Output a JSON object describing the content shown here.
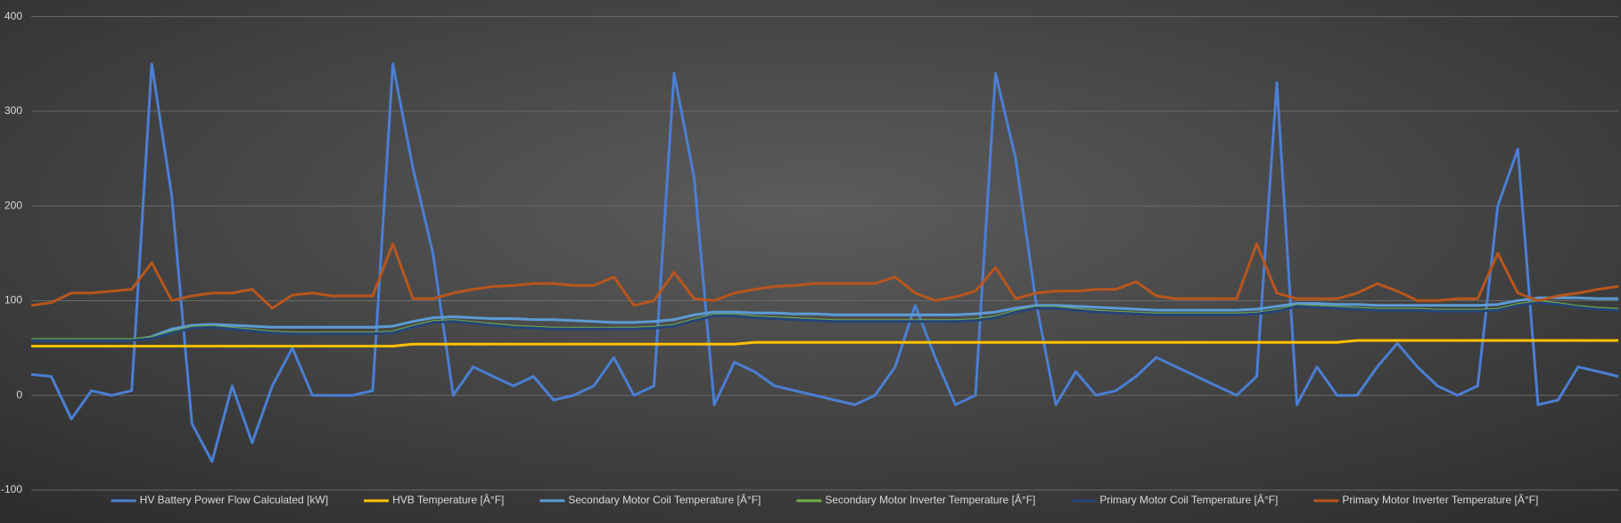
{
  "chart_data": {
    "type": "line",
    "categories": [
      null,
      null,
      null,
      null,
      null,
      null,
      null,
      null,
      null,
      null,
      null,
      null,
      null,
      null,
      null,
      null,
      null,
      null,
      null,
      null,
      null,
      null,
      null,
      null,
      null,
      null,
      null,
      null,
      null,
      null,
      null,
      null,
      null,
      null,
      null,
      null,
      null,
      null,
      null,
      null,
      null,
      null,
      null,
      null,
      null,
      null,
      null,
      null,
      null,
      null,
      null,
      null,
      null,
      null,
      null,
      null,
      null,
      null,
      null,
      null,
      null,
      null,
      null,
      null,
      null,
      null,
      null,
      null,
      null,
      null,
      null,
      null,
      null,
      null,
      null,
      null,
      null,
      null,
      null,
      null
    ],
    "series": [
      {
        "name": "HV Battery Power Flow Calculated [kW]",
        "color": "#4a7fd4",
        "values": [
          22,
          20,
          -25,
          5,
          0,
          5,
          350,
          210,
          -30,
          -70,
          10,
          -50,
          10,
          50,
          0,
          0,
          0,
          5,
          350,
          240,
          150,
          0,
          30,
          20,
          10,
          20,
          -5,
          0,
          10,
          40,
          0,
          10,
          340,
          230,
          -10,
          35,
          25,
          10,
          5,
          0,
          -5,
          -10,
          0,
          30,
          95,
          40,
          -10,
          0,
          340,
          250,
          100,
          -10,
          25,
          0,
          5,
          20,
          40,
          30,
          20,
          10,
          0,
          20,
          330,
          -10,
          30,
          0,
          0,
          30,
          55,
          30,
          10,
          0,
          10,
          200,
          260,
          -10,
          -5,
          30,
          25,
          20
        ]
      },
      {
        "name": "HVB Temperature [Â°F]",
        "color": "#ffc000",
        "values": [
          52,
          52,
          52,
          52,
          52,
          52,
          52,
          52,
          52,
          52,
          52,
          52,
          52,
          52,
          52,
          52,
          52,
          52,
          52,
          54,
          54,
          54,
          54,
          54,
          54,
          54,
          54,
          54,
          54,
          54,
          54,
          54,
          54,
          54,
          54,
          54,
          56,
          56,
          56,
          56,
          56,
          56,
          56,
          56,
          56,
          56,
          56,
          56,
          56,
          56,
          56,
          56,
          56,
          56,
          56,
          56,
          56,
          56,
          56,
          56,
          56,
          56,
          56,
          56,
          56,
          56,
          58,
          58,
          58,
          58,
          58,
          58,
          58,
          58,
          58,
          58,
          58,
          58,
          58,
          58
        ]
      },
      {
        "name": "Secondary Motor Coil Temperature [Â°F]",
        "color": "#5b9bd5",
        "values": [
          58,
          58,
          58,
          58,
          58,
          58,
          62,
          70,
          74,
          75,
          74,
          73,
          72,
          72,
          72,
          72,
          72,
          72,
          73,
          78,
          82,
          83,
          82,
          81,
          81,
          80,
          80,
          79,
          78,
          77,
          77,
          78,
          80,
          85,
          88,
          88,
          87,
          87,
          86,
          86,
          85,
          85,
          85,
          85,
          85,
          85,
          85,
          86,
          88,
          92,
          95,
          95,
          94,
          93,
          92,
          91,
          90,
          90,
          90,
          90,
          90,
          91,
          94,
          97,
          97,
          96,
          96,
          95,
          95,
          95,
          95,
          95,
          95,
          96,
          100,
          103,
          103,
          103,
          102,
          102
        ]
      },
      {
        "name": "Secondary Motor Inverter Temperature [Â°F]",
        "color": "#70ad47",
        "values": [
          59,
          59,
          59,
          59,
          59,
          59,
          61,
          67,
          72,
          73,
          71,
          69,
          67,
          66,
          66,
          66,
          66,
          66,
          67,
          73,
          78,
          79,
          77,
          75,
          73,
          72,
          71,
          71,
          71,
          71,
          71,
          72,
          74,
          80,
          85,
          85,
          83,
          82,
          81,
          80,
          79,
          79,
          79,
          79,
          79,
          79,
          79,
          80,
          83,
          89,
          93,
          93,
          91,
          89,
          88,
          87,
          86,
          86,
          86,
          86,
          86,
          87,
          90,
          95,
          94,
          93,
          92,
          91,
          91,
          91,
          90,
          90,
          90,
          91,
          96,
          99,
          97,
          94,
          92,
          91
        ]
      },
      {
        "name": "Primary Motor Coil Temperature [Â°F]",
        "color": "#264478",
        "values": [
          58,
          58,
          58,
          58,
          58,
          58,
          60,
          66,
          71,
          72,
          70,
          68,
          66,
          65,
          65,
          65,
          65,
          65,
          66,
          72,
          77,
          78,
          76,
          74,
          72,
          71,
          70,
          70,
          70,
          70,
          70,
          71,
          73,
          79,
          84,
          84,
          82,
          81,
          80,
          79,
          78,
          78,
          78,
          78,
          78,
          78,
          78,
          79,
          82,
          88,
          92,
          92,
          90,
          88,
          87,
          86,
          85,
          85,
          85,
          85,
          85,
          86,
          89,
          94,
          93,
          92,
          91,
          90,
          90,
          90,
          89,
          89,
          89,
          90,
          95,
          98,
          96,
          93,
          91,
          90
        ]
      },
      {
        "name": "Primary Motor Inverter Temperature [Â°F]",
        "color": "#b9561d",
        "values": [
          95,
          98,
          108,
          108,
          110,
          112,
          140,
          100,
          105,
          108,
          108,
          112,
          92,
          106,
          108,
          105,
          105,
          105,
          160,
          102,
          102,
          108,
          112,
          115,
          116,
          118,
          118,
          116,
          116,
          125,
          95,
          100,
          130,
          102,
          100,
          108,
          112,
          115,
          116,
          118,
          118,
          118,
          118,
          125,
          108,
          100,
          104,
          110,
          135,
          102,
          108,
          110,
          110,
          112,
          112,
          120,
          105,
          102,
          102,
          102,
          102,
          160,
          108,
          102,
          102,
          102,
          108,
          118,
          110,
          100,
          100,
          102,
          102,
          150,
          108,
          100,
          105,
          108,
          112,
          115
        ]
      }
    ],
    "ylim": [
      -100,
      400
    ],
    "yticks": [
      -100,
      0,
      100,
      200,
      300,
      400
    ],
    "grid": true,
    "legend": "bottom"
  }
}
